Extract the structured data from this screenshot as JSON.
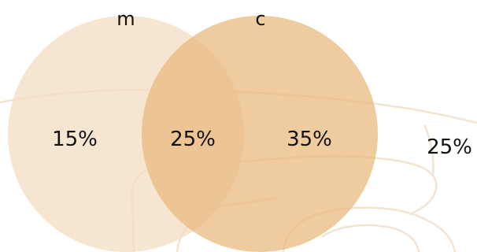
{
  "diagram": {
    "type": "venn",
    "sets": [
      {
        "name": "m",
        "color": "#f3dcc0"
      },
      {
        "name": "c",
        "color": "#e9b77c"
      }
    ],
    "regions": {
      "m_only": "15%",
      "m_and_c": "25%",
      "c_only": "35%",
      "outside": "25%"
    },
    "background_sketch_color": "#f3e4d3",
    "text_color": "#111111"
  }
}
